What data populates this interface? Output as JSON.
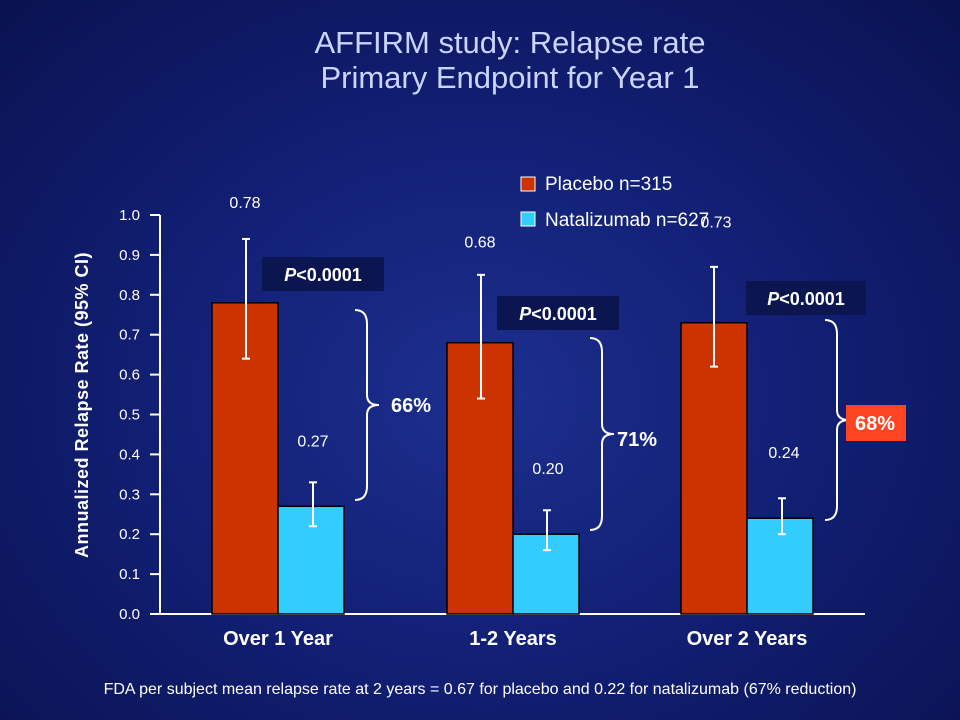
{
  "title_line1": "AFFIRM study: Relapse rate",
  "title_line2": "Primary Endpoint for Year 1",
  "footer_note": "FDA per subject mean relapse rate at 2 years = 0.67 for placebo and 0.22 for natalizumab (67% reduction)",
  "colors": {
    "placebo": "#cc3300",
    "natalizumab": "#33ccff",
    "highlight_bg": "#ff4422",
    "text": "#ffffff"
  },
  "chart_data": {
    "type": "bar",
    "categories": [
      "Over 1 Year",
      "1-2 Years",
      "Over 2 Years"
    ],
    "series": [
      {
        "name": "Placebo n=315",
        "values": [
          0.78,
          0.68,
          0.73
        ],
        "ci_low": [
          0.64,
          0.54,
          0.62
        ],
        "ci_high": [
          0.94,
          0.85,
          0.87
        ]
      },
      {
        "name": "Natalizumab n=627",
        "values": [
          0.27,
          0.2,
          0.24
        ],
        "ci_low": [
          0.22,
          0.16,
          0.2
        ],
        "ci_high": [
          0.33,
          0.26,
          0.29
        ]
      }
    ],
    "data_labels": [
      [
        "0.78",
        "0.68",
        "0.73"
      ],
      [
        "0.27",
        "0.20",
        "0.24"
      ]
    ],
    "ylabel": "Annualized Relapse Rate (95% CI)",
    "xlabel": "",
    "ylim": [
      0,
      1.0
    ],
    "yticks": [
      "0.0",
      "0.1",
      "0.2",
      "0.3",
      "0.4",
      "0.5",
      "0.6",
      "0.7",
      "0.8",
      "0.9",
      "1.0"
    ],
    "grid": false,
    "legend_position": "top-right",
    "annotations": {
      "p_values": [
        "<0.0001",
        "<0.0001",
        "<0.0001"
      ],
      "p_prefix": "P",
      "reductions": [
        "66%",
        "71%",
        "68%"
      ],
      "highlighted_reduction": 2
    }
  }
}
